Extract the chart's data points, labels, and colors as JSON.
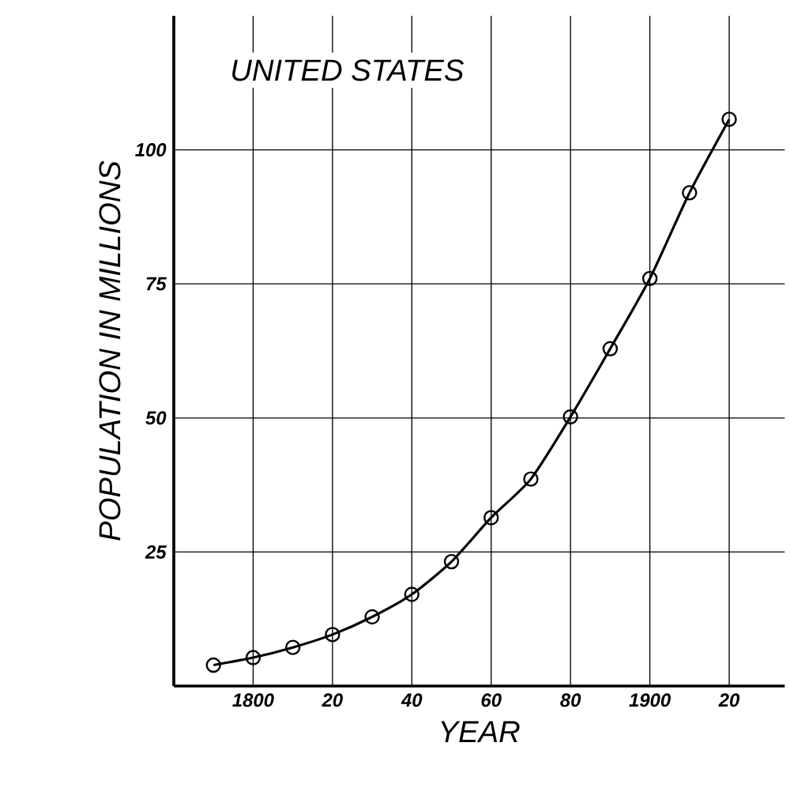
{
  "chart_data": {
    "type": "line",
    "title": "UNITED STATES",
    "xlabel": "YEAR",
    "ylabel": "POPULATION IN MILLIONS",
    "x": [
      1790,
      1800,
      1810,
      1820,
      1830,
      1840,
      1850,
      1860,
      1870,
      1880,
      1890,
      1900,
      1910,
      1920
    ],
    "series": [
      {
        "color": "#000000",
        "values": [
          3.9,
          5.3,
          7.2,
          9.6,
          12.9,
          17.1,
          23.2,
          31.4,
          38.6,
          50.2,
          62.9,
          76.0,
          92.0,
          105.7
        ]
      }
    ],
    "xlim": [
      1780,
      1934
    ],
    "ylim": [
      0,
      125
    ],
    "xticks": [
      {
        "value": 1800,
        "label": "1800"
      },
      {
        "value": 1820,
        "label": "20"
      },
      {
        "value": 1840,
        "label": "40"
      },
      {
        "value": 1860,
        "label": "60"
      },
      {
        "value": 1880,
        "label": "80"
      },
      {
        "value": 1900,
        "label": "1900"
      },
      {
        "value": 1920,
        "label": "20"
      }
    ],
    "yticks": [
      25,
      50,
      75,
      100
    ],
    "grid": true,
    "marker": "circle",
    "line_style": "solid"
  }
}
